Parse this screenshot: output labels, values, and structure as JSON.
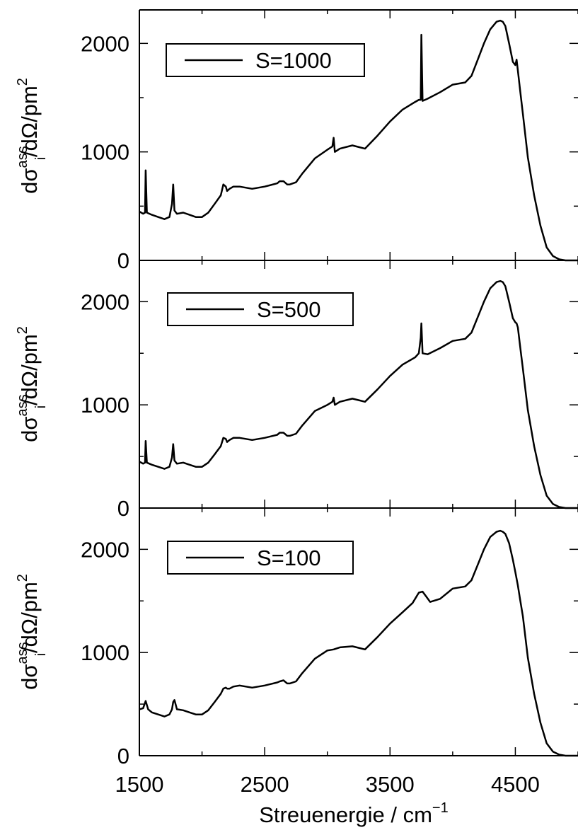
{
  "chart_data": [
    {
      "type": "line",
      "legend": "S=1000",
      "legend_position": "top-left",
      "ylabel": {
        "base": "dσ",
        "sup": "ass",
        "sub": "i",
        "rest": "/dΩ/pm",
        "exp": "2"
      },
      "xlabel": "",
      "xlim": [
        1500,
        5000
      ],
      "ylim": [
        0,
        2400
      ],
      "yticks": [
        "0",
        "1000",
        "2000"
      ],
      "x": [
        1500,
        1530,
        1545,
        1550,
        1560,
        1600,
        1650,
        1700,
        1740,
        1760,
        1770,
        1780,
        1800,
        1850,
        1900,
        1950,
        2000,
        2050,
        2100,
        2150,
        2170,
        2190,
        2200,
        2220,
        2250,
        2300,
        2400,
        2500,
        2600,
        2620,
        2650,
        2680,
        2700,
        2750,
        2800,
        2900,
        3000,
        3040,
        3050,
        3060,
        3100,
        3200,
        3300,
        3400,
        3500,
        3600,
        3700,
        3730,
        3745,
        3750,
        3760,
        3800,
        3900,
        4000,
        4100,
        4150,
        4200,
        4250,
        4300,
        4350,
        4380,
        4400,
        4420,
        4450,
        4480,
        4500,
        4510,
        4520,
        4540,
        4560,
        4600,
        4650,
        4700,
        4750,
        4800,
        4850,
        4900,
        4950,
        5000
      ],
      "y": [
        450,
        430,
        440,
        830,
        440,
        420,
        400,
        380,
        400,
        520,
        700,
        460,
        430,
        440,
        420,
        400,
        400,
        440,
        520,
        600,
        700,
        680,
        640,
        660,
        680,
        680,
        660,
        680,
        710,
        730,
        730,
        700,
        700,
        720,
        800,
        940,
        1020,
        1050,
        1130,
        1000,
        1030,
        1060,
        1030,
        1150,
        1280,
        1390,
        1460,
        1480,
        1480,
        2080,
        1470,
        1490,
        1550,
        1620,
        1640,
        1700,
        1850,
        2000,
        2130,
        2200,
        2210,
        2200,
        2160,
        2000,
        1830,
        1800,
        1850,
        1750,
        1550,
        1350,
        950,
        600,
        320,
        120,
        40,
        10,
        0,
        0,
        0
      ]
    },
    {
      "type": "line",
      "legend": "S=500",
      "legend_position": "top-left",
      "ylabel": {
        "base": "dσ",
        "sup": "ass",
        "sub": "i",
        "rest": "/dΩ/pm",
        "exp": "2"
      },
      "xlabel": "",
      "xlim": [
        1500,
        5000
      ],
      "ylim": [
        0,
        2400
      ],
      "yticks": [
        "0",
        "1000",
        "2000"
      ],
      "x": [
        1500,
        1530,
        1545,
        1550,
        1560,
        1600,
        1650,
        1700,
        1740,
        1760,
        1770,
        1780,
        1800,
        1850,
        1900,
        1950,
        2000,
        2050,
        2100,
        2150,
        2170,
        2190,
        2200,
        2220,
        2250,
        2300,
        2400,
        2500,
        2600,
        2620,
        2650,
        2680,
        2700,
        2750,
        2800,
        2900,
        3000,
        3040,
        3050,
        3060,
        3100,
        3200,
        3300,
        3400,
        3500,
        3600,
        3700,
        3730,
        3745,
        3750,
        3760,
        3800,
        3900,
        4000,
        4100,
        4150,
        4200,
        4250,
        4300,
        4350,
        4380,
        4400,
        4420,
        4450,
        4480,
        4500,
        4510,
        4520,
        4540,
        4560,
        4600,
        4650,
        4700,
        4750,
        4800,
        4850,
        4900,
        4950,
        5000
      ],
      "y": [
        450,
        430,
        440,
        650,
        440,
        420,
        400,
        380,
        400,
        490,
        620,
        460,
        430,
        440,
        420,
        400,
        400,
        440,
        520,
        600,
        680,
        670,
        640,
        660,
        680,
        680,
        660,
        680,
        710,
        730,
        730,
        700,
        700,
        720,
        800,
        940,
        1000,
        1030,
        1070,
        1000,
        1030,
        1060,
        1030,
        1150,
        1280,
        1390,
        1460,
        1500,
        1650,
        1790,
        1500,
        1490,
        1550,
        1620,
        1640,
        1700,
        1850,
        2000,
        2130,
        2190,
        2200,
        2190,
        2150,
        2000,
        1840,
        1800,
        1790,
        1750,
        1550,
        1350,
        950,
        600,
        320,
        120,
        40,
        10,
        0,
        0,
        0
      ]
    },
    {
      "type": "line",
      "legend": "S=100",
      "legend_position": "top-left",
      "ylabel": {
        "base": "dσ",
        "sup": "ass",
        "sub": "i",
        "rest": "/dΩ/pm",
        "exp": "2"
      },
      "xlabel": {
        "base": "Streuenergie / cm",
        "sup": "−1"
      },
      "xlim": [
        1500,
        5000
      ],
      "ylim": [
        0,
        2400
      ],
      "yticks": [
        "0",
        "1000",
        "2000"
      ],
      "xticks": [
        "1500",
        "2500",
        "3500",
        "4500"
      ],
      "x": [
        1500,
        1530,
        1550,
        1570,
        1600,
        1650,
        1700,
        1740,
        1760,
        1770,
        1780,
        1800,
        1850,
        1900,
        1950,
        2000,
        2050,
        2100,
        2150,
        2170,
        2190,
        2200,
        2220,
        2250,
        2300,
        2400,
        2500,
        2600,
        2620,
        2650,
        2680,
        2700,
        2750,
        2800,
        2900,
        3000,
        3050,
        3100,
        3200,
        3300,
        3400,
        3500,
        3600,
        3680,
        3730,
        3760,
        3790,
        3820,
        3900,
        4000,
        4100,
        4150,
        4200,
        4250,
        4300,
        4350,
        4380,
        4400,
        4420,
        4450,
        4480,
        4500,
        4520,
        4540,
        4560,
        4600,
        4650,
        4700,
        4750,
        4800,
        4850,
        4900,
        4950,
        5000
      ],
      "y": [
        450,
        460,
        530,
        450,
        420,
        400,
        380,
        400,
        450,
        520,
        540,
        450,
        440,
        420,
        400,
        400,
        440,
        520,
        600,
        650,
        660,
        650,
        650,
        670,
        680,
        660,
        680,
        710,
        720,
        730,
        700,
        700,
        720,
        800,
        940,
        1020,
        1030,
        1050,
        1060,
        1030,
        1150,
        1280,
        1390,
        1480,
        1580,
        1590,
        1540,
        1490,
        1520,
        1620,
        1640,
        1700,
        1850,
        2000,
        2120,
        2170,
        2180,
        2170,
        2150,
        2060,
        1900,
        1780,
        1650,
        1500,
        1350,
        950,
        600,
        320,
        120,
        40,
        10,
        0,
        0,
        0
      ]
    }
  ]
}
